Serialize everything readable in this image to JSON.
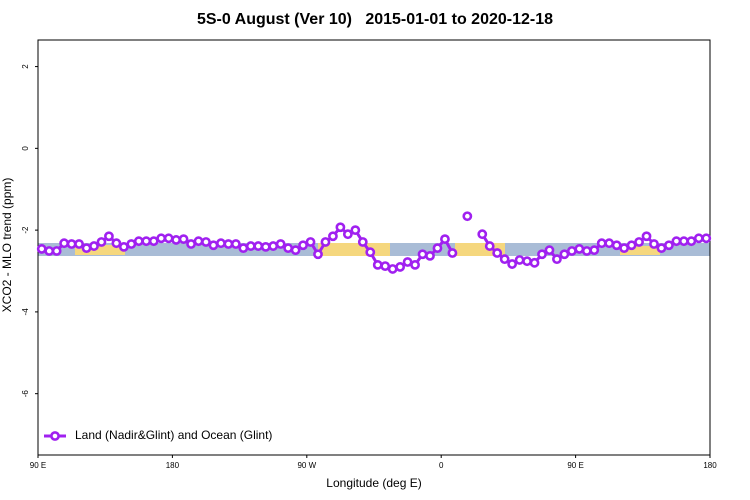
{
  "chart_data": {
    "type": "line",
    "title": "5S-0 August (Ver 10)   2015-01-01 to 2020-12-18",
    "x_label": "Longitude (deg E)",
    "y_label": "XCO2 - MLO trend (ppm)",
    "xlim": [
      90,
      540
    ],
    "xticks": [
      {
        "value": 90,
        "label": "90 E"
      },
      {
        "value": 180,
        "label": "180"
      },
      {
        "value": 270,
        "label": "90 W"
      },
      {
        "value": 360,
        "label": "0"
      },
      {
        "value": 450,
        "label": "90 E"
      },
      {
        "value": 540,
        "label": "180"
      }
    ],
    "ylim": [
      -7.5,
      2.65
    ],
    "yticks": [
      2,
      0,
      -2,
      -4,
      -6
    ],
    "legend": "bottomleft",
    "x": [
      92.5,
      97.5,
      102.5,
      107.5,
      112.5,
      117.5,
      122.5,
      127.5,
      132.5,
      137.5,
      142.5,
      147.5,
      152.5,
      157.5,
      162.5,
      167.5,
      172.5,
      177.5,
      182.5,
      187.5,
      192.5,
      197.5,
      202.5,
      207.5,
      212.5,
      217.5,
      222.5,
      227.5,
      232.5,
      237.5,
      242.5,
      247.5,
      252.5,
      257.5,
      262.5,
      267.5,
      272.5,
      277.5,
      282.5,
      287.5,
      292.5,
      297.5,
      302.5,
      307.5,
      312.5,
      317.5,
      322.5,
      327.5,
      332.5,
      337.5,
      342.5,
      347.5,
      352.5,
      357.5,
      362.5,
      367.5,
      372.5,
      377.5,
      382.5,
      387.5,
      392.5,
      397.5,
      402.5,
      407.5,
      412.5,
      417.5,
      422.5,
      427.5,
      432.5,
      437.5,
      442.5,
      447.5,
      452.5,
      457.5,
      462.5,
      467.5,
      472.5,
      477.5,
      482.5,
      487.5,
      492.5,
      497.5,
      502.5,
      507.5,
      512.5,
      517.5,
      522.5,
      527.5,
      532.5,
      537.5
    ],
    "series": [
      {
        "name": "Land (Nadir&Glint) and Ocean (Glint)",
        "color": "#a020f0",
        "values": [
          -2.46,
          -2.51,
          -2.51,
          -2.32,
          -2.34,
          -2.34,
          -2.44,
          -2.39,
          -2.29,
          -2.15,
          -2.32,
          -2.41,
          -2.34,
          -2.27,
          -2.27,
          -2.27,
          -2.2,
          -2.2,
          -2.24,
          -2.22,
          -2.34,
          -2.27,
          -2.29,
          -2.37,
          -2.32,
          -2.34,
          -2.34,
          -2.44,
          -2.39,
          -2.39,
          -2.41,
          -2.39,
          -2.34,
          -2.44,
          -2.49,
          -2.37,
          -2.29,
          -2.59,
          -2.29,
          -2.15,
          -1.93,
          -2.1,
          -2.0,
          -2.29,
          -2.54,
          -2.85,
          -2.88,
          -2.95,
          -2.9,
          -2.78,
          -2.85,
          -2.59,
          -2.63,
          -2.44,
          -2.22,
          -2.56,
          null,
          -1.66,
          null,
          -2.1,
          -2.39,
          -2.56,
          -2.71,
          -2.83,
          -2.73,
          -2.76,
          -2.8,
          -2.59,
          -2.49,
          -2.71,
          -2.59,
          -2.51,
          -2.46,
          -2.51,
          -2.49,
          -2.32,
          -2.32,
          -2.37,
          -2.44,
          -2.37,
          -2.29,
          -2.15,
          -2.34,
          -2.44,
          -2.37,
          -2.27,
          -2.27,
          -2.27,
          -2.2,
          -2.2
        ]
      }
    ]
  }
}
